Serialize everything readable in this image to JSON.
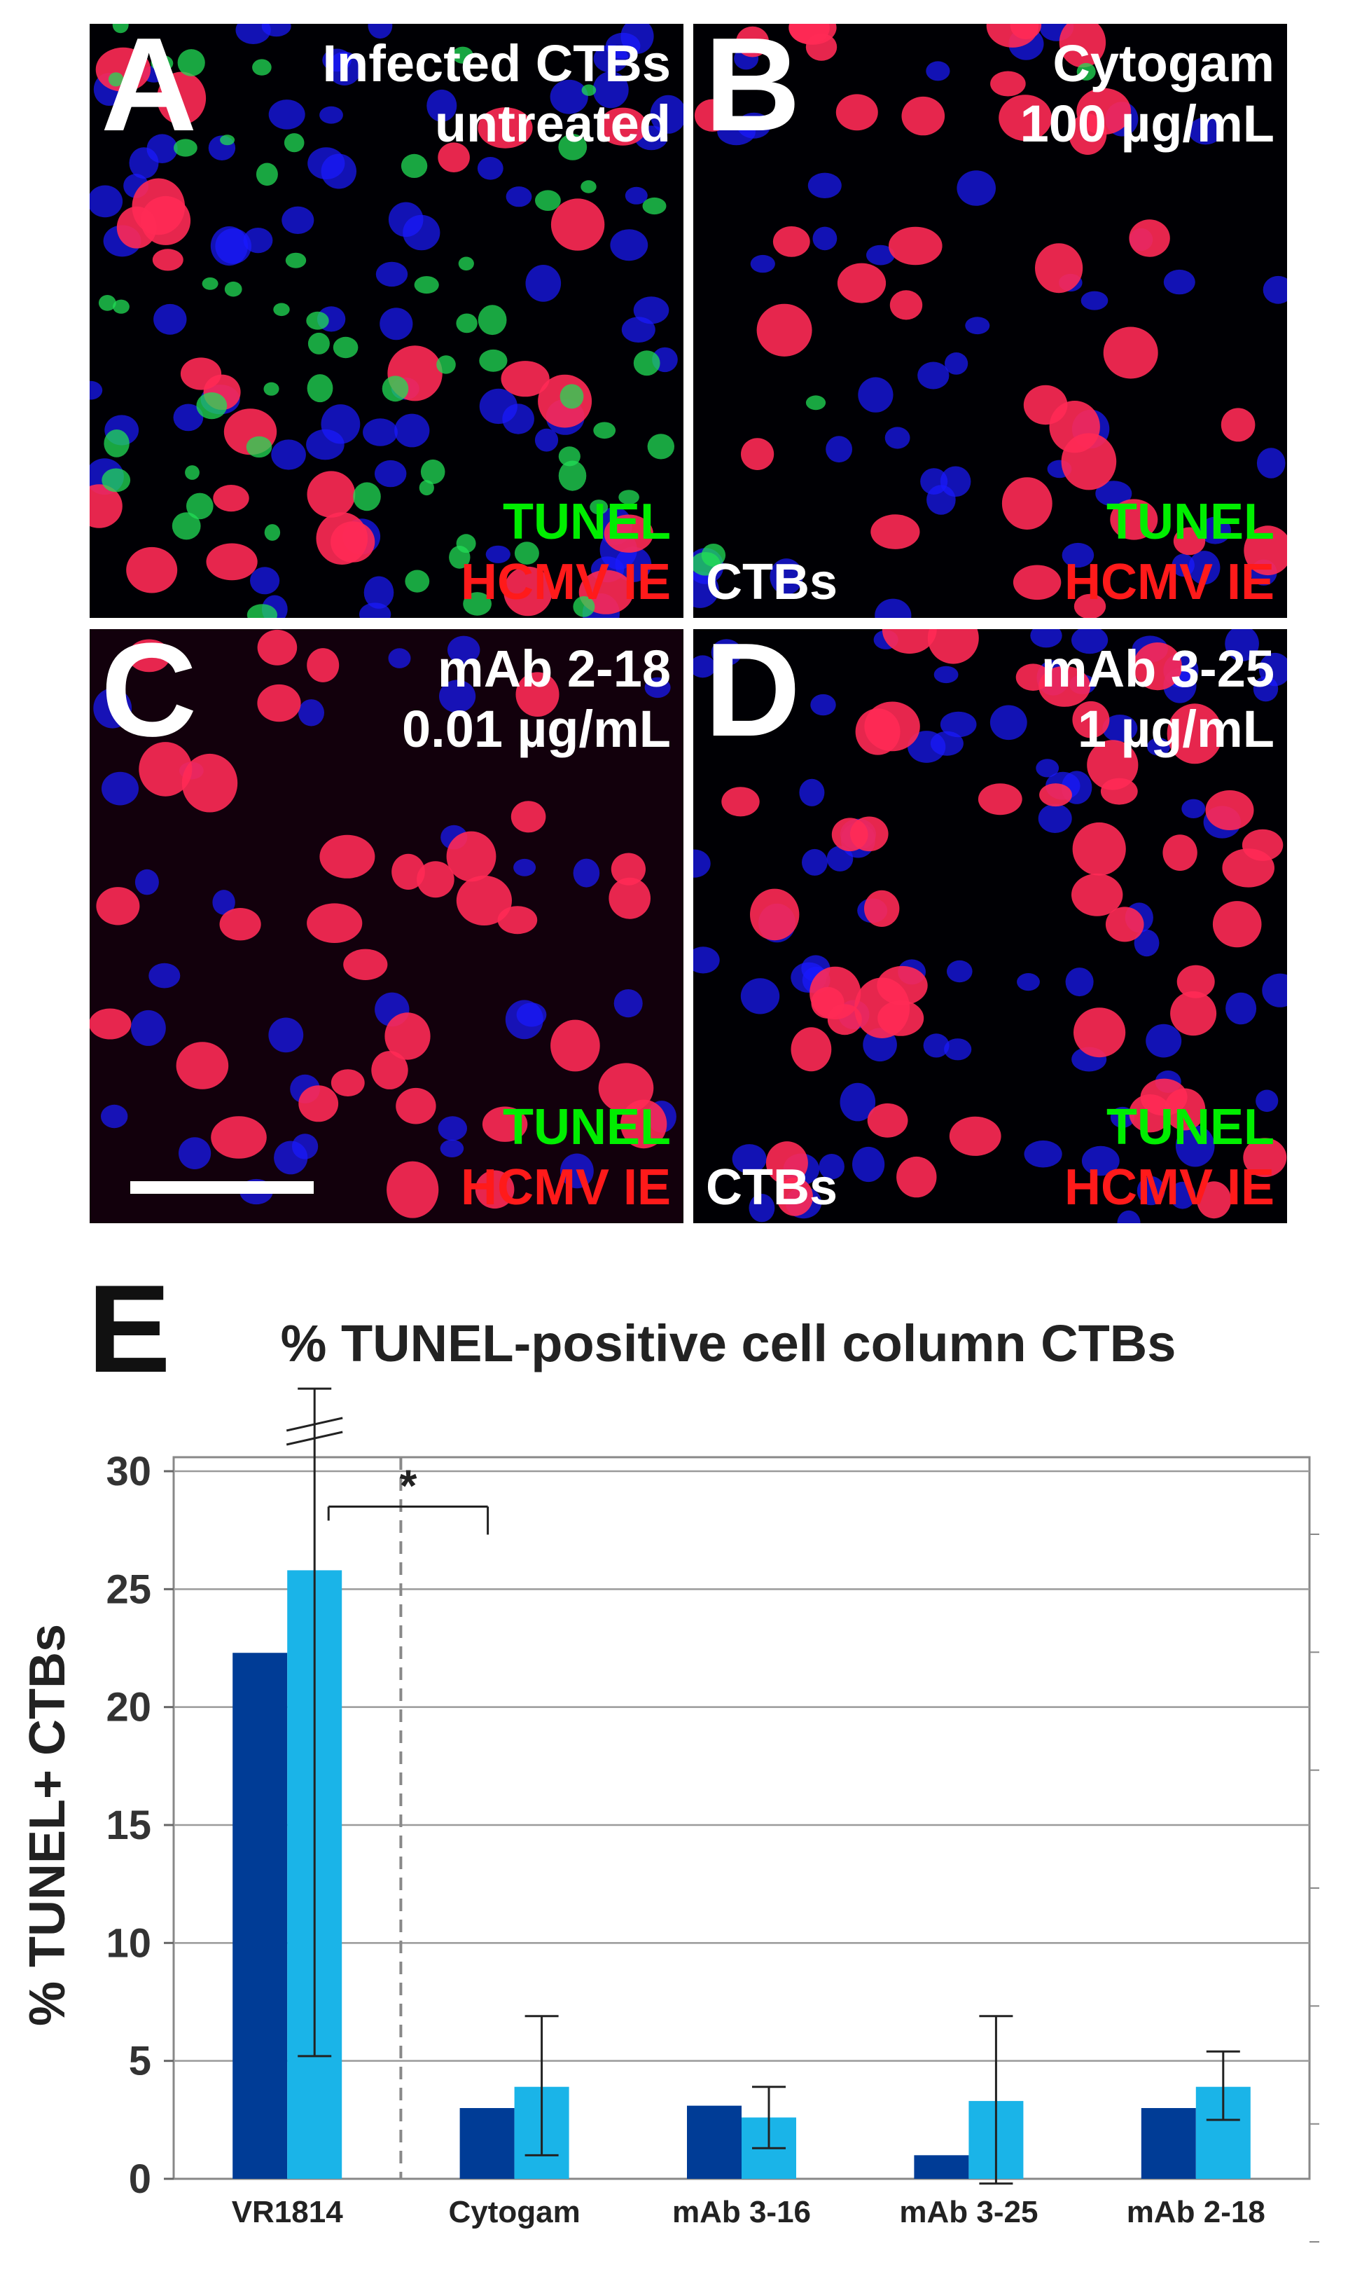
{
  "figure": {
    "panels": [
      {
        "letter": "A",
        "condition": [
          "Infected CTBs",
          "untreated"
        ],
        "stains": [
          "TUNEL",
          "HCMV IE"
        ],
        "cell_label": ""
      },
      {
        "letter": "B",
        "condition": [
          "Cytogam",
          "100 µg/mL"
        ],
        "stains": [
          "TUNEL",
          "HCMV IE"
        ],
        "cell_label": "CTBs"
      },
      {
        "letter": "C",
        "condition": [
          "mAb 2-18",
          "0.01 µg/mL"
        ],
        "stains": [
          "TUNEL",
          "HCMV IE"
        ],
        "cell_label": ""
      },
      {
        "letter": "D",
        "condition": [
          "mAb 3-25",
          "1 µg/mL"
        ],
        "stains": [
          "TUNEL",
          "HCMV IE"
        ],
        "cell_label": "CTBs"
      }
    ],
    "colors": {
      "tunel_text": "#00ee00",
      "ie_text": "#ff1a1a",
      "nuclei_blue": "#1a1aff",
      "ie_red": "#ff2a55",
      "tunel_green": "#22dd55",
      "bar_dark": "#003c96",
      "bar_light": "#1ab4e8"
    }
  },
  "chart_data": {
    "panel_letter": "E",
    "type": "bar",
    "title": "% TUNEL-positive cell column CTBs",
    "ylabel": "%  TUNEL+ CTBs",
    "xlabel": "",
    "ylim": [
      0,
      30
    ],
    "yticks": [
      0,
      5,
      10,
      15,
      20,
      25,
      30
    ],
    "grid": true,
    "categories": [
      "VR1814",
      "Cytogam",
      "mAb 3-16",
      "mAb 3-25",
      "mAb 2-18"
    ],
    "series": [
      {
        "values": [
          22.3,
          3.0,
          3.1,
          1.0,
          3.0
        ],
        "color": "#003c96"
      },
      {
        "values": [
          25.8,
          3.9,
          2.6,
          3.3,
          3.9
        ],
        "color": "#1ab4e8",
        "error_low": [
          5.2,
          1.0,
          1.3,
          -0.2,
          2.5
        ],
        "error_high": [
          33.5,
          6.9,
          3.9,
          6.9,
          5.4
        ]
      }
    ],
    "axis_break": true,
    "significance": {
      "label": "*",
      "between": [
        "VR1814",
        "Cytogam"
      ]
    },
    "divider_after": "VR1814"
  }
}
